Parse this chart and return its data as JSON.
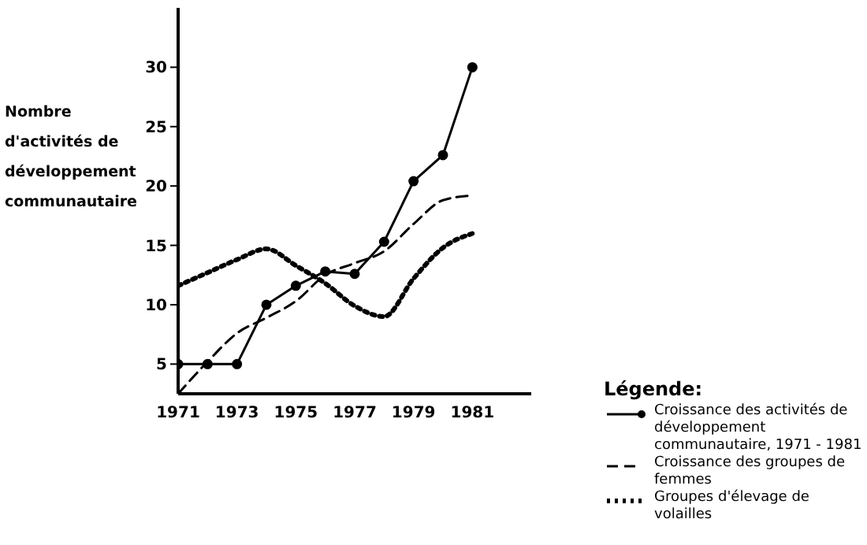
{
  "chart_data": {
    "type": "line",
    "ylabel": "Nombre d'activités de développement communautaire",
    "legend_title": "Légende:",
    "legend": "bottom right",
    "grid": false,
    "x": [
      1971,
      1972,
      1973,
      1974,
      1975,
      1976,
      1977,
      1978,
      1979,
      1980,
      1981
    ],
    "xlim": [
      1971,
      1983
    ],
    "xticks": [
      1971,
      1973,
      1975,
      1977,
      1979,
      1981
    ],
    "ylim": [
      2.5,
      35
    ],
    "yticks": [
      5,
      10,
      15,
      20,
      25,
      30
    ],
    "series": [
      {
        "name": "Croissance des activités de développement communautaire, 1971 - 1981",
        "color": "#000000",
        "line_style": "solid",
        "marker": "circle",
        "values": [
          5,
          5,
          5,
          10,
          11.6,
          12.8,
          12.6,
          15.3,
          20.4,
          22.6,
          30
        ]
      },
      {
        "name": "Croissance des groupes de femmes",
        "color": "#000000",
        "line_style": "dashed",
        "marker": "none",
        "values": [
          2.5,
          5.2,
          7.6,
          8.9,
          10.3,
          12.5,
          13.5,
          14.5,
          16.8,
          18.8,
          19.2
        ]
      },
      {
        "name": "Groupes d'élevage de volailles",
        "color": "#000000",
        "line_style": "dotted",
        "marker": "none",
        "values": [
          11.6,
          12.7,
          13.8,
          14.7,
          13.3,
          11.8,
          9.9,
          9,
          12.2,
          14.8,
          16
        ]
      }
    ]
  }
}
